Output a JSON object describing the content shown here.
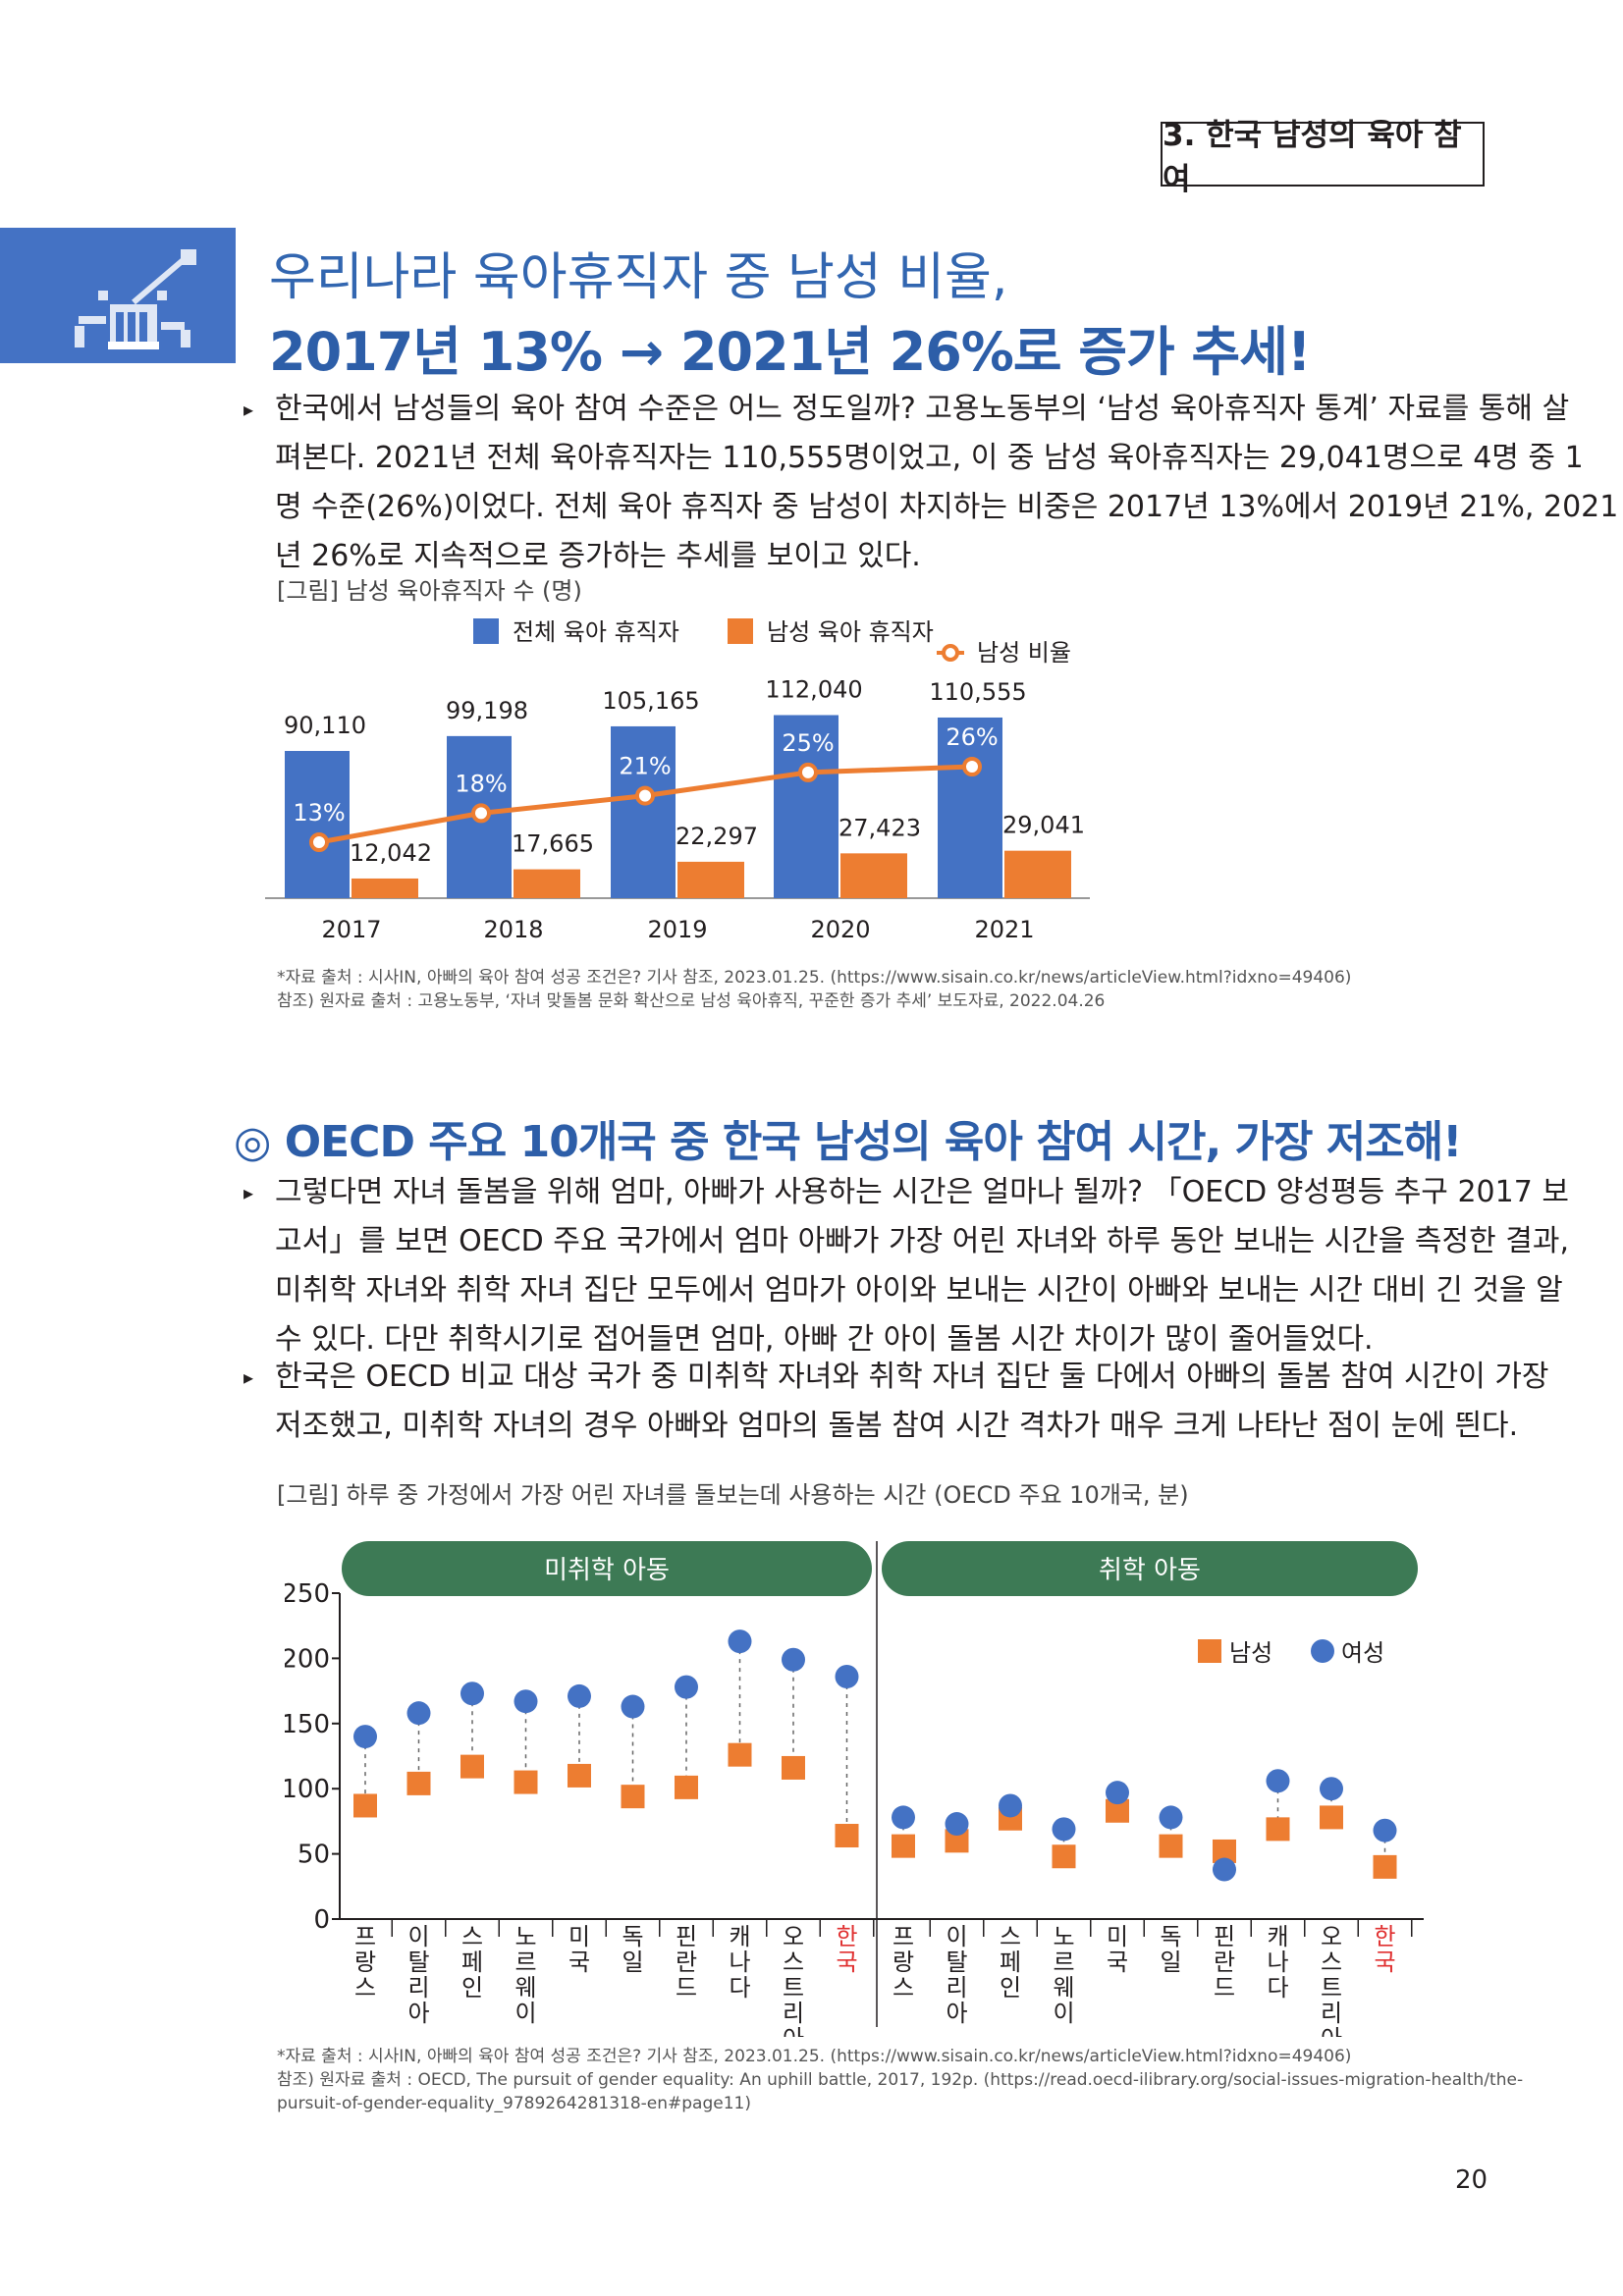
{
  "section_tag": "3. 한국 남성의 육아 참여",
  "headline": {
    "line1": "우리나라 육아휴직자 중 남성 비율,",
    "line2": "2017년 13% → 2021년 26%로 증가 추세!"
  },
  "paragraph1": {
    "line1": "한국에서 남성들의 육아 참여 수준은 어느 정도일까? 고용노동부의 ‘남성 육아휴직자 통계’ 자료를 통해 살",
    "line2": "펴본다. 2021년 전체 육아휴직자는 110,555명이었고, 이 중 남성 육아휴직자는 29,041명으로 4명 중 1",
    "line3": "명 수준(26%)이었다. 전체 육아 휴직자 중 남성이 차지하는 비중은 2017년 13%에서 2019년 21%, 2021",
    "line4": "년 26%로 지속적으로 증가하는 추세를 보이고 있다."
  },
  "figure1_caption": "[그림] 남성 육아휴직자 수 (명)",
  "figure1_sources": {
    "line1": "*자료 출처 : 시사IN, 아빠의 육아 참여 성공 조건은? 기사 참조, 2023.01.25. (https://www.sisain.co.kr/news/articleView.html?idxno=49406)",
    "line2": "참조) 원자료 출처 : 고용노동부, ‘자녀 맞돌봄 문화 확산으로 남성 육아휴직, 꾸준한 증가 추세’ 보도자료, 2022.04.26"
  },
  "headline2": "◎ OECD 주요 10개국 중 한국 남성의 육아 참여 시간, 가장 저조해!",
  "paragraph2": {
    "line1": "그렇다면 자녀 돌봄을 위해 엄마, 아빠가 사용하는 시간은 얼마나 될까? 「OECD 양성평등 추구 2017 보",
    "line2": "고서」를 보면 OECD 주요 국가에서 엄마 아빠가 가장 어린 자녀와 하루 동안 보내는 시간을 측정한 결과,",
    "line3": "미취학 자녀와 취학 자녀 집단 모두에서 엄마가 아이와 보내는 시간이 아빠와 보내는 시간 대비 긴 것을 알",
    "line4": "수 있다. 다만 취학시기로 접어들면 엄마, 아빠 간 아이 돌봄 시간 차이가 많이 줄어들었다."
  },
  "paragraph3": {
    "line1": "한국은 OECD 비교 대상 국가 중 미취학 자녀와 취학 자녀 집단 둘 다에서 아빠의 돌봄 참여 시간이 가장",
    "line2": "저조했고, 미취학 자녀의 경우 아빠와 엄마의 돌봄 참여 시간 격차가 매우 크게 나타난 점이 눈에 띈다."
  },
  "figure2_caption": "[그림] 하루 중 가정에서 가장 어린 자녀를 돌보는데 사용하는 시간 (OECD 주요 10개국, 분)",
  "figure2_sources": {
    "line1": "*자료 출처 : 시사IN, 아빠의 육아 참여 성공 조건은? 기사 참조, 2023.01.25. (https://www.sisain.co.kr/news/articleView.html?idxno=49406)",
    "line2": "참조) 원자료 출처 : OECD, The pursuit of gender equality: An uphill battle, 2017, 192p. (https://read.oecd-ilibrary.org/social-issues-migration-health/the-",
    "line3": "pursuit-of-gender-equality_9789264281318-en#page11)"
  },
  "page_number": "20",
  "colors": {
    "blue": "#4472c4",
    "orange": "#ed7d31",
    "green": "#3d7a55",
    "highlight_red": "#e03030",
    "title_blue": "#2d5ea8"
  },
  "chart_data": [
    {
      "type": "bar",
      "categories": [
        "2017",
        "2018",
        "2019",
        "2020",
        "2021"
      ],
      "series": [
        {
          "name": "전체 육아 휴직자",
          "values": [
            90110,
            99198,
            105165,
            112040,
            110555
          ],
          "labels": [
            "90,110",
            "99,198",
            "105,165",
            "112,040",
            "110,555"
          ]
        },
        {
          "name": "남성 육아 휴직자",
          "values": [
            12042,
            17665,
            22297,
            27423,
            29041
          ],
          "labels": [
            "12,042",
            "17,665",
            "22,297",
            "27,423",
            "29,041"
          ]
        }
      ],
      "line_series": {
        "name": "남성 비율",
        "values": [
          13,
          18,
          21,
          25,
          26
        ],
        "labels": [
          "13%",
          "18%",
          "21%",
          "25%",
          "26%"
        ]
      },
      "legend_position": "top"
    },
    {
      "type": "scatter",
      "group_labels": [
        "미취학 아동",
        "취학 아동"
      ],
      "countries": [
        [
          "프",
          "랑",
          "스"
        ],
        [
          "이",
          "탈",
          "리",
          "아"
        ],
        [
          "스",
          "페",
          "인"
        ],
        [
          "노",
          "르",
          "웨",
          "이"
        ],
        [
          "미",
          "국"
        ],
        [
          "독",
          "일"
        ],
        [
          "핀",
          "란",
          "드"
        ],
        [
          "캐",
          "나",
          "다"
        ],
        [
          "오",
          "스",
          "트",
          "리",
          "아"
        ],
        [
          "한",
          "국"
        ]
      ],
      "highlight_index": 9,
      "series": [
        {
          "name": "남성",
          "preschool": [
            87,
            104,
            117,
            105,
            110,
            94,
            101,
            126,
            116,
            64
          ],
          "school": [
            56,
            60,
            77,
            48,
            83,
            56,
            52,
            69,
            78,
            40
          ]
        },
        {
          "name": "여성",
          "preschool": [
            140,
            158,
            173,
            167,
            171,
            163,
            178,
            213,
            199,
            186
          ],
          "school": [
            78,
            73,
            87,
            69,
            97,
            78,
            38,
            106,
            100,
            68
          ]
        }
      ],
      "y_ticks": [
        "250",
        "200",
        "150",
        "100",
        "50",
        "0"
      ],
      "ylim": [
        0,
        250
      ],
      "legend_position": "top-right"
    }
  ]
}
